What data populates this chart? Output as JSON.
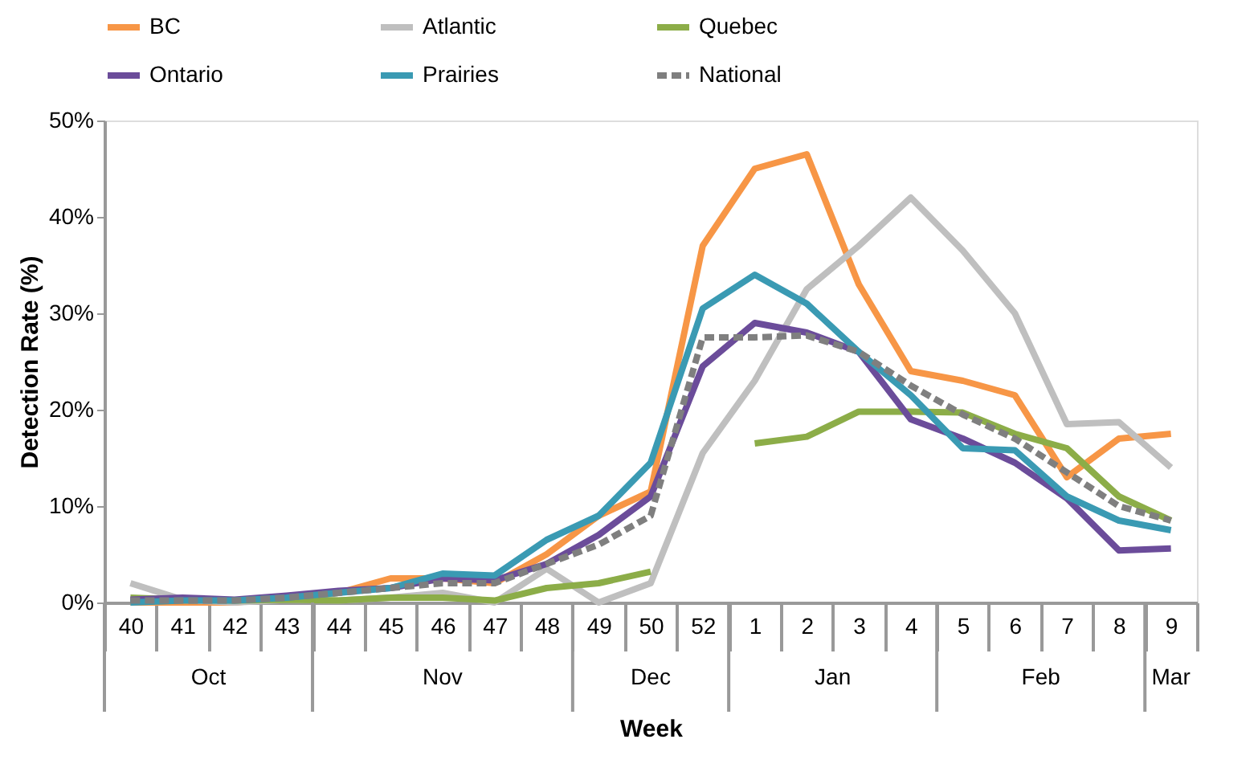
{
  "chart_data": {
    "type": "line",
    "xlabel": "Week",
    "ylabel": "Detection Rate (%)",
    "categories": [
      "40",
      "41",
      "42",
      "43",
      "44",
      "45",
      "46",
      "47",
      "48",
      "49",
      "50",
      "52",
      "1",
      "2",
      "3",
      "4",
      "5",
      "6",
      "7",
      "8",
      "9"
    ],
    "series": [
      {
        "name": "BC",
        "color": "#f79646",
        "values": [
          0,
          0,
          0,
          0.5,
          1,
          2.5,
          2.5,
          2,
          5,
          9,
          11.5,
          37,
          45,
          46.5,
          33,
          24,
          23,
          21.5,
          13,
          17,
          17.5
        ]
      },
      {
        "name": "Atlantic",
        "color": "#bfbfbf",
        "values": [
          2,
          0.3,
          0,
          0.3,
          0.2,
          0.5,
          1,
          0,
          3.5,
          0,
          2,
          15.5,
          23,
          32.5,
          37,
          42,
          36.5,
          30,
          18.5,
          18.7,
          14
        ]
      },
      {
        "name": "Quebec",
        "color": "#8cad48",
        "values": [
          0.5,
          0.3,
          0.2,
          0.3,
          0.2,
          0.5,
          0.5,
          0.2,
          1.5,
          2,
          3.2,
          null,
          16.5,
          17.2,
          19.8,
          19.8,
          19.7,
          17.5,
          16,
          11,
          8.5
        ]
      },
      {
        "name": "Ontario",
        "color": "#6b4c9a",
        "values": [
          0.3,
          0.5,
          0.3,
          0.7,
          1.2,
          1.5,
          2.5,
          2.3,
          4,
          7,
          11,
          24.5,
          29,
          28,
          26,
          19,
          17,
          14.5,
          10.8,
          5.4,
          5.6
        ]
      },
      {
        "name": "Prairies",
        "color": "#3a9ab3",
        "values": [
          0,
          0.2,
          0.2,
          0.5,
          1,
          1.5,
          3,
          2.8,
          6.5,
          9,
          14.5,
          30.5,
          34,
          31,
          26,
          21.5,
          16,
          15.8,
          11,
          8.5,
          7.5
        ]
      },
      {
        "name": "National",
        "color": "#7f7f7f",
        "line_style": "dashed",
        "values": [
          0.2,
          0.2,
          0.2,
          0.5,
          1,
          1.5,
          2,
          2,
          4,
          6,
          9,
          27.5,
          27.5,
          27.7,
          26,
          22.5,
          19.5,
          17,
          13.5,
          10,
          8.5
        ]
      }
    ],
    "annotations": [
      "Oct",
      "Nov",
      "Dec",
      "Jan",
      "Feb",
      "Mar"
    ],
    "ylim": [
      0,
      50
    ],
    "yticks": [
      {
        "value": 0,
        "label": "0%"
      },
      {
        "value": 10,
        "label": "10%"
      },
      {
        "value": 20,
        "label": "20%"
      },
      {
        "value": 30,
        "label": "30%"
      },
      {
        "value": 40,
        "label": "40%"
      },
      {
        "value": 50,
        "label": "50%"
      }
    ],
    "grid": false,
    "legend": "top",
    "marker": "none",
    "line_style": "solid"
  }
}
